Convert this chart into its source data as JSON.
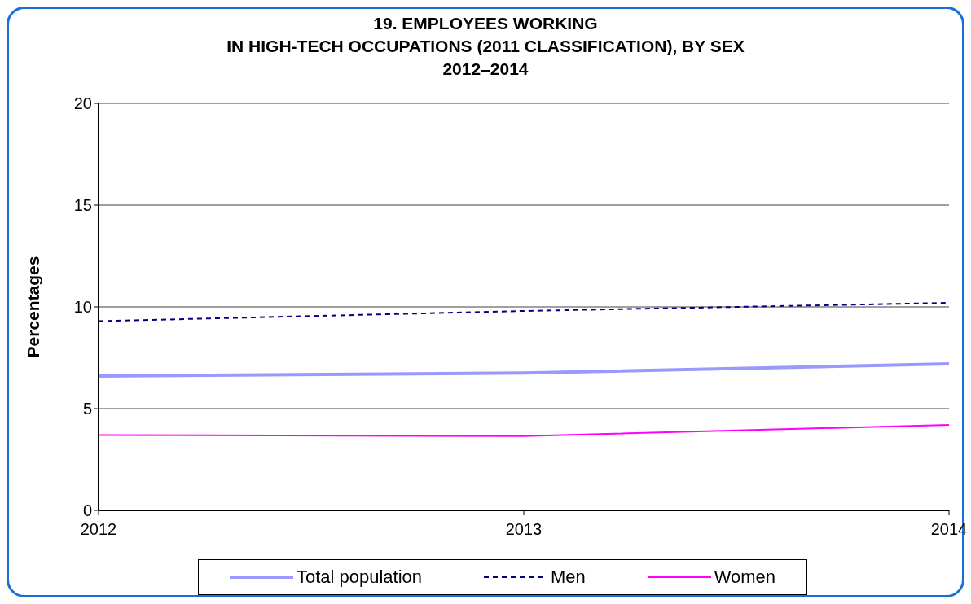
{
  "chart_data": {
    "type": "line",
    "title": "19. EMPLOYEES WORKING\nIN HIGH-TECH OCCUPATIONS (2011 CLASSIFICATION), BY SEX\n2012–2014",
    "ylabel": "Percentages",
    "x": [
      2012,
      2013,
      2014
    ],
    "xlim": [
      2012,
      2014
    ],
    "xticks": [
      2012,
      2013,
      2014
    ],
    "ylim": [
      0,
      20
    ],
    "yticks": [
      0,
      5,
      10,
      15,
      20
    ],
    "grid": "y",
    "legend": "bottom",
    "marker": "none",
    "series": [
      {
        "name": "Total population",
        "color": "#9999ff",
        "values": [
          6.6,
          6.75,
          7.2
        ],
        "line_style": "solid"
      },
      {
        "name": "Men",
        "color": "#000080",
        "values": [
          9.3,
          9.8,
          10.2
        ],
        "line_style": "dashed"
      },
      {
        "name": "Women",
        "color": "#ff00ff",
        "values": [
          3.7,
          3.65,
          4.2
        ],
        "line_style": "solid"
      }
    ]
  }
}
